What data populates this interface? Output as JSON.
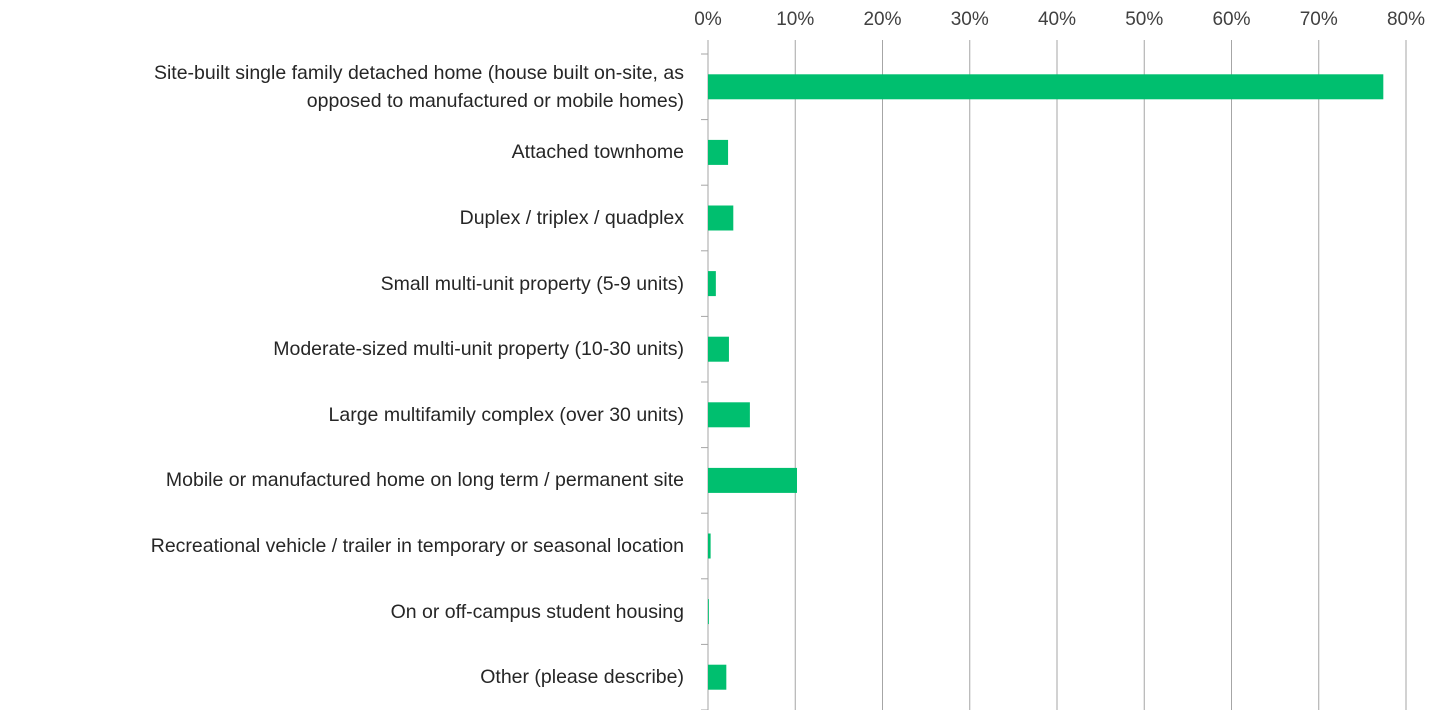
{
  "chart_data": {
    "type": "bar",
    "orientation": "horizontal",
    "categories": [
      "Site-built single family detached home (house built on-site, as\nopposed to manufactured or mobile homes)",
      "Attached townhome",
      "Duplex / triplex / quadplex",
      "Small multi-unit property (5-9 units)",
      "Moderate-sized multi-unit property (10-30 units)",
      "Large multifamily complex (over 30 units)",
      "Mobile or manufactured home on long term / permanent site",
      "Recreational vehicle / trailer in temporary or seasonal location",
      "On or off-campus student housing",
      "Other (please describe)"
    ],
    "values": [
      77.4,
      2.3,
      2.9,
      0.9,
      2.4,
      4.8,
      10.2,
      0.3,
      0.1,
      2.1
    ],
    "color": "#00bf6f",
    "xlim": [
      0,
      80
    ],
    "xticks": [
      {
        "value": 0,
        "label": "0%"
      },
      {
        "value": 10,
        "label": "10%"
      },
      {
        "value": 20,
        "label": "20%"
      },
      {
        "value": 30,
        "label": "30%"
      },
      {
        "value": 40,
        "label": "40%"
      },
      {
        "value": 50,
        "label": "50%"
      },
      {
        "value": 60,
        "label": "60%"
      },
      {
        "value": 70,
        "label": "70%"
      },
      {
        "value": 80,
        "label": "80%"
      }
    ],
    "grid": true
  }
}
